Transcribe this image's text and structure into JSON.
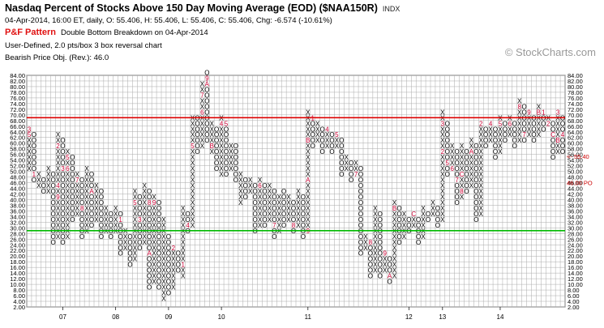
{
  "header": {
    "title": "Nasdaq Percent of Stocks Above 150 Day Moving Average (EOD) ($NAA150R)",
    "exchange": "INDX",
    "ohlc": "04-Apr-2014, 16:00 ET, daily, O: 55.406, H: 55.406, L: 55.406, C: 55.406, Chg: -6.574 (-10.61%)",
    "pattern_name": "P&F Pattern",
    "pattern_desc": "Double Bottom Breakdown on 04-Apr-2014",
    "settings": "User-Defined, 2.0 pts/box 3 box reversal chart",
    "bearish_obj": "Bearish Price Obj. (Rev.): 46.0"
  },
  "watermark": "© StockCharts.com",
  "colors": {
    "x_mark": "#000000",
    "o_mark": "#000000",
    "month_marker": "#cc0033",
    "upper_line": "#dd0000",
    "lower_line": "#00bb00",
    "grid": "#aaaaaa",
    "price_tag": "#cc0000",
    "objective_tag": "#cc0000"
  },
  "chart_data": {
    "type": "point-and-figure",
    "box_size": 2.0,
    "reversal": 3,
    "ylim": [
      2,
      84
    ],
    "y_tick_labels": [
      "84.00",
      "82.00",
      "80.00",
      "78.00",
      "76.00",
      "74.00",
      "72.00",
      "70.00",
      "68.00",
      "66.00",
      "64.00",
      "62.00",
      "60.00",
      "58.00",
      "56.00",
      "54.00",
      "52.00",
      "50.00",
      "48.00",
      "46.00",
      "44.00",
      "42.00",
      "40.00",
      "38.00",
      "36.00",
      "34.00",
      "32.00",
      "30.00",
      "28.00",
      "26.00",
      "24.00",
      "22.00",
      "20.00",
      "18.00",
      "16.00",
      "14.00",
      "12.00",
      "10.00",
      "8.00",
      "6.00",
      "4.00",
      "2.00"
    ],
    "x_tick_labels": [
      {
        "label": "07",
        "col": 7
      },
      {
        "label": "08",
        "col": 18
      },
      {
        "label": "09",
        "col": 29
      },
      {
        "label": "10",
        "col": 40
      },
      {
        "label": "11",
        "col": 58
      },
      {
        "label": "12",
        "col": 79
      },
      {
        "label": "13",
        "col": 86
      },
      {
        "label": "14",
        "col": 98
      }
    ],
    "horizontal_lines": [
      {
        "value": 69.0,
        "color": "red"
      },
      {
        "value": 29.0,
        "color": "green"
      }
    ],
    "price_tag": {
      "label": "55.40",
      "value": 55.4
    },
    "objective_tag": {
      "label": "46.00 PO",
      "value": 46.0
    },
    "columns": [
      {
        "t": "X",
        "lo": 50,
        "hi": 64,
        "m": [
          [
            "3",
            64
          ],
          [
            "2",
            62
          ],
          [
            "5",
            62
          ]
        ]
      },
      {
        "t": "O",
        "lo": 46,
        "hi": 62,
        "m": [
          [
            "1",
            48
          ]
        ]
      },
      {
        "t": "X",
        "lo": 44,
        "hi": 48
      },
      {
        "t": "O",
        "lo": 42,
        "hi": 46
      },
      {
        "t": "X",
        "lo": 42,
        "hi": 50
      },
      {
        "t": "O",
        "lo": 24,
        "hi": 48
      },
      {
        "t": "X",
        "lo": 26,
        "hi": 62,
        "m": [
          [
            "9",
            40
          ],
          [
            "4",
            44
          ],
          [
            "2",
            58
          ]
        ]
      },
      {
        "t": "O",
        "lo": 24,
        "hi": 60,
        "m": [
          [
            "3",
            50
          ]
        ]
      },
      {
        "t": "X",
        "lo": 26,
        "hi": 56,
        "m": [
          [
            "5",
            54
          ],
          [
            "6",
            50
          ]
        ]
      },
      {
        "t": "O",
        "lo": 32,
        "hi": 54
      },
      {
        "t": "X",
        "lo": 34,
        "hi": 48,
        "m": [
          [
            "7",
            46
          ]
        ]
      },
      {
        "t": "O",
        "lo": 26,
        "hi": 46,
        "m": [
          [
            "8",
            36
          ]
        ]
      },
      {
        "t": "X",
        "lo": 28,
        "hi": 50
      },
      {
        "t": "O",
        "lo": 30,
        "hi": 48,
        "m": [
          [
            "A",
            42
          ]
        ]
      },
      {
        "t": "X",
        "lo": 32,
        "hi": 44
      },
      {
        "t": "O",
        "lo": 26,
        "hi": 42
      },
      {
        "t": "X",
        "lo": 28,
        "hi": 36
      },
      {
        "t": "O",
        "lo": 26,
        "hi": 34
      },
      {
        "t": "X",
        "lo": 28,
        "hi": 36
      },
      {
        "t": "O",
        "lo": 20,
        "hi": 34,
        "m": [
          [
            "1",
            32
          ]
        ]
      },
      {
        "t": "X",
        "lo": 22,
        "hi": 28
      },
      {
        "t": "O",
        "lo": 16,
        "hi": 26
      },
      {
        "t": "X",
        "lo": 18,
        "hi": 42,
        "m": [
          [
            "5",
            38
          ]
        ]
      },
      {
        "t": "O",
        "lo": 22,
        "hi": 40,
        "m": [
          [
            "3",
            32
          ]
        ]
      },
      {
        "t": "X",
        "lo": 24,
        "hi": 44
      },
      {
        "t": "O",
        "lo": 8,
        "hi": 42,
        "m": [
          [
            "8",
            38
          ],
          [
            "A",
            20
          ]
        ]
      },
      {
        "t": "X",
        "lo": 10,
        "hi": 40,
        "m": [
          [
            "9",
            38
          ]
        ]
      },
      {
        "t": "O",
        "lo": 8,
        "hi": 38
      },
      {
        "t": "X",
        "lo": 4,
        "hi": 32
      },
      {
        "t": "O",
        "lo": 6,
        "hi": 26
      },
      {
        "t": "X",
        "lo": 8,
        "hi": 22,
        "m": [
          [
            "2",
            22
          ]
        ]
      },
      {
        "t": "O",
        "lo": 14,
        "hi": 20
      },
      {
        "t": "X",
        "lo": 12,
        "hi": 36,
        "m": [
          [
            "1",
            16
          ]
        ]
      },
      {
        "t": "O",
        "lo": 28,
        "hi": 34,
        "m": [
          [
            "4",
            30
          ]
        ]
      },
      {
        "t": "X",
        "lo": 30,
        "hi": 68,
        "m": [
          [
            "5",
            58
          ]
        ]
      },
      {
        "t": "O",
        "lo": 56,
        "hi": 68
      },
      {
        "t": "X",
        "lo": 58,
        "hi": 80,
        "m": [
          [
            "6",
            70
          ],
          [
            "7",
            76
          ]
        ]
      },
      {
        "t": "O",
        "lo": 60,
        "hi": 84,
        "m": [
          [
            "9",
            82
          ],
          [
            "8",
            80
          ],
          [
            "A",
            80
          ]
        ]
      },
      {
        "t": "X",
        "lo": 56,
        "hi": 66,
        "m": [
          [
            "B",
            58
          ]
        ]
      },
      {
        "t": "O",
        "lo": 50,
        "hi": 64
      },
      {
        "t": "X",
        "lo": 48,
        "hi": 68,
        "m": [
          [
            "4",
            66
          ]
        ]
      },
      {
        "t": "O",
        "lo": 48,
        "hi": 66,
        "m": [
          [
            "5",
            66
          ]
        ]
      },
      {
        "t": "X",
        "lo": 50,
        "hi": 58
      },
      {
        "t": "O",
        "lo": 46,
        "hi": 58
      },
      {
        "t": "X",
        "lo": 38,
        "hi": 48
      },
      {
        "t": "O",
        "lo": 40,
        "hi": 46
      },
      {
        "t": "X",
        "lo": 42,
        "hi": 46
      },
      {
        "t": "O",
        "lo": 28,
        "hi": 44
      },
      {
        "t": "X",
        "lo": 30,
        "hi": 46,
        "m": [
          [
            "6",
            44
          ]
        ]
      },
      {
        "t": "O",
        "lo": 30,
        "hi": 44
      },
      {
        "t": "X",
        "lo": 32,
        "hi": 44
      },
      {
        "t": "O",
        "lo": 26,
        "hi": 42,
        "m": [
          [
            "7",
            30
          ]
        ]
      },
      {
        "t": "X",
        "lo": 28,
        "hi": 40
      },
      {
        "t": "O",
        "lo": 30,
        "hi": 42
      },
      {
        "t": "X",
        "lo": 32,
        "hi": 40
      },
      {
        "t": "O",
        "lo": 28,
        "hi": 38,
        "m": [
          [
            "8",
            30
          ]
        ]
      },
      {
        "t": "X",
        "lo": 30,
        "hi": 42
      },
      {
        "t": "O",
        "lo": 26,
        "hi": 40
      },
      {
        "t": "X",
        "lo": 28,
        "hi": 70,
        "m": [
          [
            "9",
            28
          ],
          [
            "A",
            46
          ],
          [
            "B",
            60
          ]
        ]
      },
      {
        "t": "O",
        "lo": 58,
        "hi": 68,
        "m": [
          [
            "1",
            68
          ]
        ]
      },
      {
        "t": "X",
        "lo": 60,
        "hi": 66,
        "m": [
          [
            "3",
            68
          ]
        ]
      },
      {
        "t": "O",
        "lo": 56,
        "hi": 64
      },
      {
        "t": "X",
        "lo": 58,
        "hi": 64,
        "m": [
          [
            "4",
            64
          ]
        ]
      },
      {
        "t": "O",
        "lo": 56,
        "hi": 62
      },
      {
        "t": "X",
        "lo": 58,
        "hi": 62,
        "m": [
          [
            "5",
            62
          ]
        ]
      },
      {
        "t": "O",
        "lo": 48,
        "hi": 60
      },
      {
        "t": "X",
        "lo": 50,
        "hi": 54
      },
      {
        "t": "O",
        "lo": 46,
        "hi": 52,
        "m": [
          [
            "6",
            54
          ]
        ]
      },
      {
        "t": "X",
        "lo": 48,
        "hi": 52,
        "m": [
          [
            "7",
            48
          ]
        ]
      },
      {
        "t": "O",
        "lo": 20,
        "hi": 50
      },
      {
        "t": "X",
        "lo": 22,
        "hi": 26
      },
      {
        "t": "O",
        "lo": 12,
        "hi": 24,
        "m": [
          [
            "8",
            24
          ]
        ]
      },
      {
        "t": "X",
        "lo": 14,
        "hi": 36
      },
      {
        "t": "O",
        "lo": 12,
        "hi": 34
      },
      {
        "t": "X",
        "lo": 14,
        "hi": 20,
        "m": [
          [
            "9",
            20
          ]
        ]
      },
      {
        "t": "O",
        "lo": 10,
        "hi": 18,
        "m": [
          [
            "A",
            12
          ]
        ]
      },
      {
        "t": "X",
        "lo": 12,
        "hi": 38,
        "m": [
          [
            "B",
            36
          ]
        ]
      },
      {
        "t": "O",
        "lo": 24,
        "hi": 36
      },
      {
        "t": "X",
        "lo": 26,
        "hi": 34
      },
      {
        "t": "O",
        "lo": 28,
        "hi": 32
      },
      {
        "t": "X",
        "lo": 30,
        "hi": 34,
        "m": [
          [
            "C",
            34
          ]
        ]
      },
      {
        "t": "O",
        "lo": 24,
        "hi": 32
      },
      {
        "t": "X",
        "lo": 26,
        "hi": 36
      },
      {
        "t": "O",
        "lo": 32,
        "hi": 34
      },
      {
        "t": "X",
        "lo": 34,
        "hi": 38
      },
      {
        "t": "O",
        "lo": 30,
        "hi": 36
      },
      {
        "t": "X",
        "lo": 32,
        "hi": 70,
        "m": [
          [
            "2",
            56
          ],
          [
            "4",
            66
          ],
          [
            "3",
            66
          ]
        ]
      },
      {
        "t": "O",
        "lo": 48,
        "hi": 66,
        "m": [
          [
            "5",
            52
          ]
        ]
      },
      {
        "t": "X",
        "lo": 50,
        "hi": 58,
        "m": [
          [
            "6",
            50
          ]
        ]
      },
      {
        "t": "O",
        "lo": 38,
        "hi": 56,
        "m": [
          [
            "7",
            46
          ]
        ]
      },
      {
        "t": "X",
        "lo": 40,
        "hi": 58,
        "m": [
          [
            "8",
            42
          ],
          [
            "9",
            48
          ],
          [
            "C",
            48
          ]
        ]
      },
      {
        "t": "O",
        "lo": 42,
        "hi": 56
      },
      {
        "t": "X",
        "lo": 44,
        "hi": 60,
        "m": [
          [
            "A",
            56
          ]
        ]
      },
      {
        "t": "O",
        "lo": 32,
        "hi": 58
      },
      {
        "t": "X",
        "lo": 34,
        "hi": 66,
        "m": [
          [
            "2",
            66
          ]
        ]
      },
      {
        "t": "O",
        "lo": 58,
        "hi": 64
      },
      {
        "t": "X",
        "lo": 60,
        "hi": 66,
        "m": [
          [
            "4",
            66
          ]
        ]
      },
      {
        "t": "O",
        "lo": 54,
        "hi": 64
      },
      {
        "t": "X",
        "lo": 56,
        "hi": 68,
        "m": [
          [
            "5",
            66
          ]
        ]
      },
      {
        "t": "O",
        "lo": 60,
        "hi": 66
      },
      {
        "t": "X",
        "lo": 62,
        "hi": 68,
        "m": [
          [
            "6",
            66
          ]
        ]
      },
      {
        "t": "O",
        "lo": 58,
        "hi": 66
      },
      {
        "t": "X",
        "lo": 60,
        "hi": 74,
        "m": [
          [
            "8",
            72
          ]
        ]
      },
      {
        "t": "O",
        "lo": 60,
        "hi": 72,
        "m": [
          [
            "7",
            62
          ]
        ]
      },
      {
        "t": "X",
        "lo": 62,
        "hi": 70,
        "m": [
          [
            "9",
            70
          ]
        ]
      },
      {
        "t": "O",
        "lo": 60,
        "hi": 68
      },
      {
        "t": "X",
        "lo": 62,
        "hi": 72,
        "m": [
          [
            "B",
            70
          ]
        ]
      },
      {
        "t": "O",
        "lo": 64,
        "hi": 70,
        "m": [
          [
            "1",
            70
          ]
        ]
      },
      {
        "t": "X",
        "lo": 66,
        "hi": 68,
        "m": [
          [
            "2",
            66
          ]
        ]
      },
      {
        "t": "O",
        "lo": 54,
        "hi": 66,
        "m": [
          [
            "C",
            62
          ]
        ]
      },
      {
        "t": "X",
        "lo": 56,
        "hi": 70,
        "m": [
          [
            "B",
            60
          ],
          [
            "3",
            70
          ]
        ]
      },
      {
        "t": "O",
        "lo": 56,
        "hi": 68,
        "m": [
          [
            "4",
            62
          ]
        ]
      }
    ]
  }
}
